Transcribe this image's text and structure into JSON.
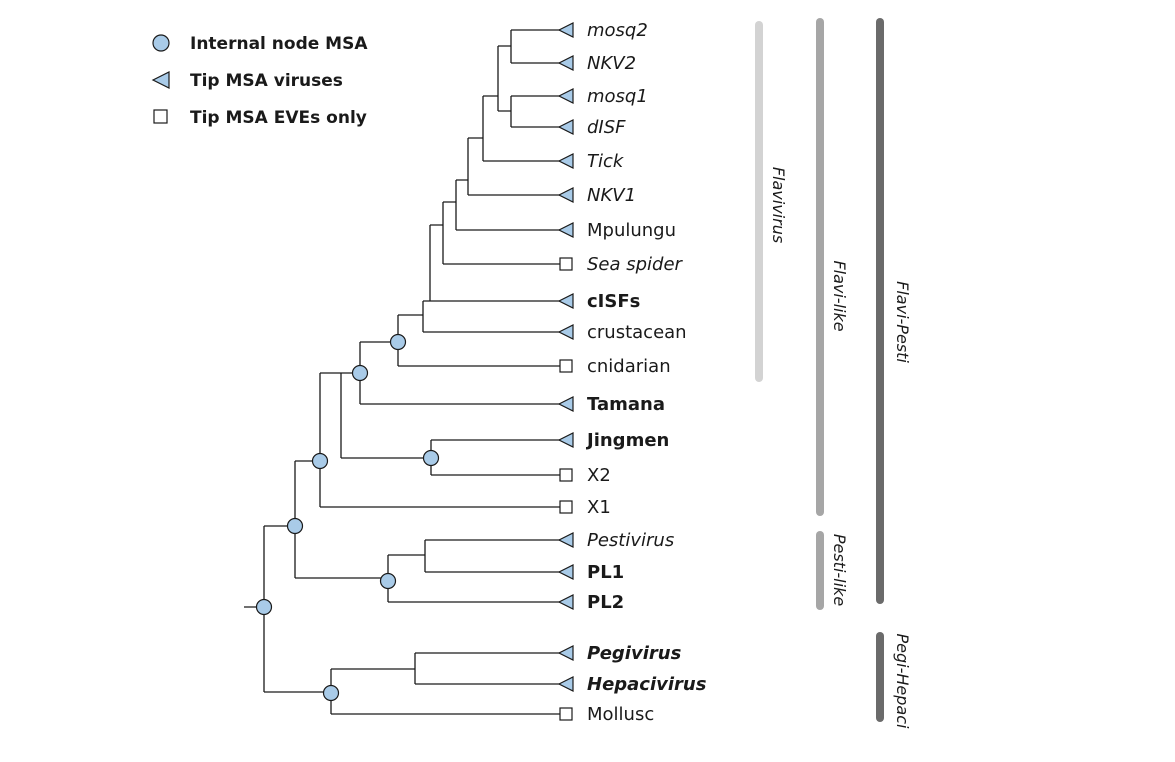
{
  "colors": {
    "node_fill": "#a9cbe8",
    "line": "#1a1a1a",
    "bar_flavivirus": "#d3d3d3",
    "bar_flavi_like": "#a6a6a6",
    "bar_pesti_like": "#a6a6a6",
    "bar_flavi_pesti": "#6b6b6b",
    "bar_pegi_hepaci": "#6b6b6b"
  },
  "legend": [
    {
      "icon": "circle-icon",
      "label": "Internal node MSA"
    },
    {
      "icon": "triangle-icon",
      "label": "Tip MSA viruses"
    },
    {
      "icon": "square-icon",
      "label": "Tip MSA EVEs only"
    }
  ],
  "tips": [
    {
      "label": "mosq2",
      "style": "italic",
      "marker": "triangle-icon"
    },
    {
      "label": "NKV2",
      "style": "italic",
      "marker": "triangle-icon"
    },
    {
      "label": "mosq1",
      "style": "italic",
      "marker": "triangle-icon"
    },
    {
      "label": "dISF",
      "style": "italic",
      "marker": "triangle-icon"
    },
    {
      "label": "Tick",
      "style": "italic",
      "marker": "triangle-icon"
    },
    {
      "label": "NKV1",
      "style": "italic",
      "marker": "triangle-icon"
    },
    {
      "label": "Mpulungu",
      "style": "normal",
      "marker": "triangle-icon"
    },
    {
      "label": "Sea spider",
      "style": "italic",
      "marker": "square-icon"
    },
    {
      "label": "cISFs",
      "style": "bold",
      "marker": "triangle-icon"
    },
    {
      "label": "crustacean",
      "style": "normal",
      "marker": "triangle-icon"
    },
    {
      "label": "cnidarian",
      "style": "normal",
      "marker": "square-icon"
    },
    {
      "label": "Tamana",
      "style": "bold",
      "marker": "triangle-icon"
    },
    {
      "label": "Jingmen",
      "style": "bold",
      "marker": "triangle-icon"
    },
    {
      "label": "X2",
      "style": "normal",
      "marker": "square-icon"
    },
    {
      "label": "X1",
      "style": "normal",
      "marker": "square-icon"
    },
    {
      "label": "Pestivirus",
      "style": "italic",
      "marker": "triangle-icon"
    },
    {
      "label": "PL1",
      "style": "bold",
      "marker": "triangle-icon"
    },
    {
      "label": "PL2",
      "style": "bold",
      "marker": "triangle-icon"
    },
    {
      "label": "Pegivirus",
      "style": "bold-italic",
      "marker": "triangle-icon"
    },
    {
      "label": "Hepacivirus",
      "style": "bold-italic",
      "marker": "triangle-icon"
    },
    {
      "label": "Mollusc",
      "style": "normal",
      "marker": "square-icon"
    }
  ],
  "clades": [
    {
      "label": "Flavivirus",
      "from_tip": "mosq2",
      "to_tip": "cnidarian"
    },
    {
      "label": "Flavi-like",
      "from_tip": "mosq2",
      "to_tip": "X1"
    },
    {
      "label": "Pesti-like",
      "from_tip": "Pestivirus",
      "to_tip": "PL2"
    },
    {
      "label": "Flavi-Pesti",
      "from_tip": "mosq2",
      "to_tip": "PL2"
    },
    {
      "label": "Pegi-Hepaci",
      "from_tip": "Pegivirus",
      "to_tip": "Mollusc"
    }
  ]
}
